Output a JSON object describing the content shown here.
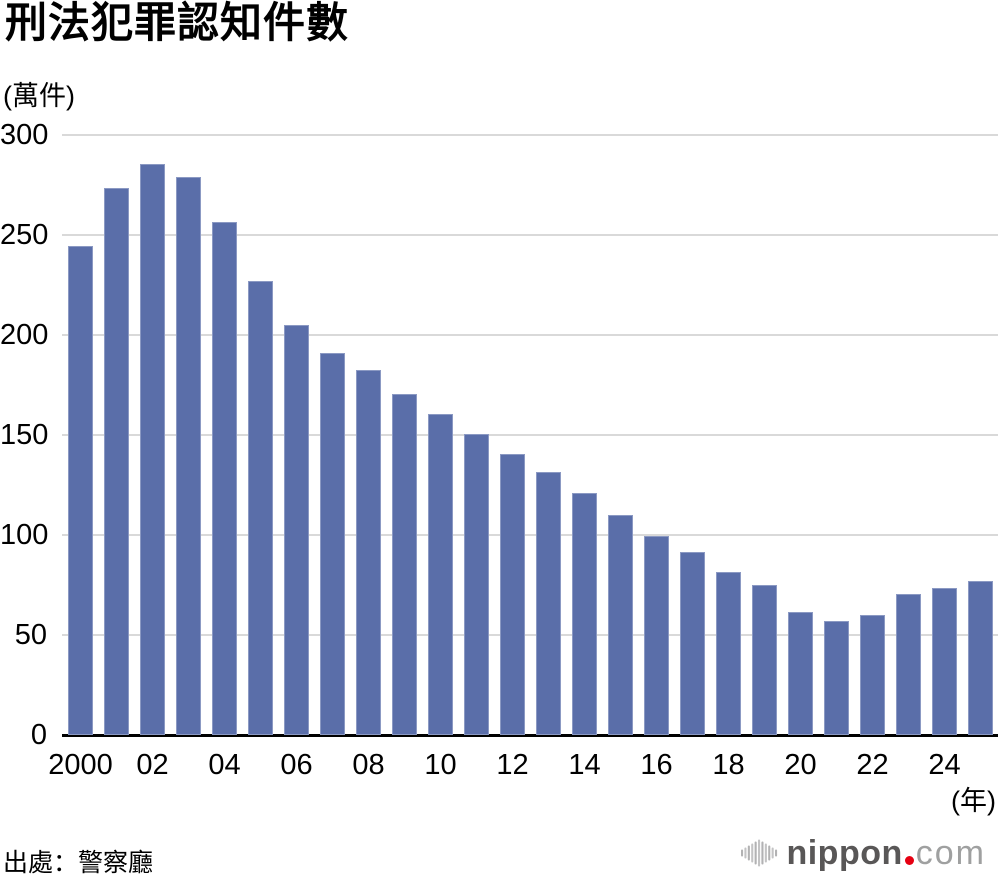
{
  "header": {
    "title": "刑法犯罪認知件數",
    "y_unit_label": "(萬件)"
  },
  "x_axis_unit_label": "(年)",
  "footer": {
    "source": "出處：警察廳"
  },
  "logo": {
    "icon": "soundwave-icon",
    "name": "nippon",
    "dot": ".",
    "tld": "com"
  },
  "colors": {
    "bar": "#5a6ea9",
    "gridline": "#d9d9d9",
    "axis": "#000000",
    "text": "#000000",
    "logo_name": "#595757",
    "logo_dot": "#e60012",
    "logo_tld": "#9fa0a0",
    "logo_icon": "#c3c3c4"
  },
  "chart_data": {
    "type": "bar",
    "title": "刑法犯罪認知件數",
    "ylabel": "(萬件)",
    "xlabel": "(年)",
    "categories": [
      2000,
      2001,
      2002,
      2003,
      2004,
      2005,
      2006,
      2007,
      2008,
      2009,
      2010,
      2011,
      2012,
      2013,
      2014,
      2015,
      2016,
      2017,
      2018,
      2019,
      2020,
      2021,
      2022,
      2023,
      2024,
      2025
    ],
    "values": [
      244.3,
      273.6,
      285.4,
      279.0,
      256.3,
      226.9,
      205.1,
      190.9,
      182.6,
      170.3,
      160.4,
      150.3,
      140.3,
      131.4,
      121.2,
      109.9,
      99.6,
      91.5,
      81.7,
      74.9,
      61.4,
      56.8,
      60.1,
      70.3,
      73.7,
      77.2
    ],
    "ylim": [
      0,
      300
    ],
    "yticks": [
      0,
      50,
      100,
      150,
      200,
      250,
      300
    ],
    "x_tick_labels": [
      {
        "index": 0,
        "label": "2000"
      },
      {
        "index": 2,
        "label": "02"
      },
      {
        "index": 4,
        "label": "04"
      },
      {
        "index": 6,
        "label": "06"
      },
      {
        "index": 8,
        "label": "08"
      },
      {
        "index": 10,
        "label": "10"
      },
      {
        "index": 12,
        "label": "12"
      },
      {
        "index": 14,
        "label": "14"
      },
      {
        "index": 16,
        "label": "16"
      },
      {
        "index": 18,
        "label": "18"
      },
      {
        "index": 20,
        "label": "20"
      },
      {
        "index": 22,
        "label": "22"
      },
      {
        "index": 24,
        "label": "24"
      }
    ],
    "grid": true,
    "legend": false,
    "source": "出處：警察廳"
  }
}
